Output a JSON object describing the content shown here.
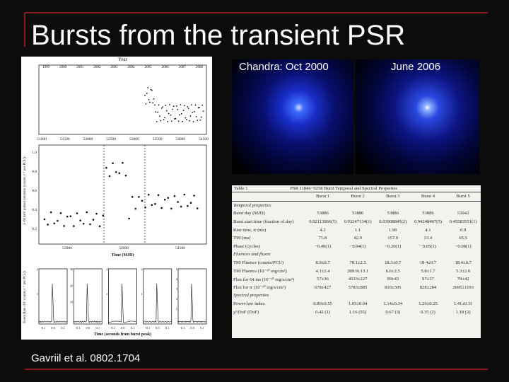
{
  "slide": {
    "title": "Bursts from the transient PSR",
    "citation": "Gavriil et al. 0802.1704",
    "image_labels": [
      "Chandra:  Oct 2000",
      "June 2006"
    ],
    "figure": {
      "top_axis_label": "Year",
      "years": [
        "1999",
        "2000",
        "2001",
        "2002",
        "2003",
        "2004",
        "2005",
        "2006",
        "2007",
        "2008"
      ],
      "top_xticks": [
        "51000",
        "51500",
        "52000",
        "52500",
        "53000",
        "53500",
        "54000",
        "54500"
      ],
      "middle_xticks": [
        "53900",
        "54000",
        "54100"
      ],
      "middle_yticks": [
        "0.2",
        "0.4",
        "0.6",
        "0.8",
        "1.0"
      ],
      "middle_xlabel": "Time (MJD)",
      "ylabel_top": "2–60 keV pulsed intensity (counts s⁻¹ per PCU)",
      "ylabel_bottom": "Event Rate (10³ counts s⁻¹ per PCU)",
      "mini_xticks": [
        "-0.1",
        "0.0",
        "0.1"
      ],
      "mini_yticks": [
        [
          "1",
          "2"
        ],
        [
          "10",
          "20",
          "30"
        ],
        [
          "1",
          "2"
        ],
        [
          "1",
          "2"
        ],
        [
          "1",
          "2",
          "3",
          "4",
          "5"
        ]
      ],
      "bottom_xlabel": "Time (seconds from burst peak)"
    },
    "table": {
      "caption": "Table 1",
      "title": "PSR J1846−0258 Burst Temporal and Spectral Properties",
      "header": [
        "",
        "Burst 1",
        "Burst 2",
        "Burst 3",
        "Burst 4",
        "Burst 5"
      ],
      "rows": [
        [
          "Temporal properties",
          "",
          "",
          "",
          "",
          ""
        ],
        [
          "Burst day (MJD)",
          "53886",
          "53886",
          "53886",
          "53886",
          "53943"
        ],
        [
          "Burst start time (fraction of day)",
          "0.92113966(5)",
          "0.93247134(1)",
          "0.93908845(2)",
          "0.94248467(5)",
          "0.45583551(1)"
        ],
        [
          "Rise time, tr (ms)",
          "4.2",
          "1.1",
          "1.90",
          "4.1",
          "0.9"
        ],
        [
          "T90 (ms)",
          "71.8",
          "42.9",
          "157.0",
          "33.4",
          "65.5"
        ],
        [
          "Phase (cycles)",
          "−0.49(1)",
          "−0.04(1)",
          "−0.20(1)",
          "−0.05(1)",
          "−0.08(1)"
        ],
        [
          "Fluences and fluxes",
          "",
          "",
          "",
          "",
          ""
        ],
        [
          "T90 Fluence (counts/PCU)",
          "8.9±0.7",
          "78.1±2.5",
          "18.3±0.7",
          "18.4±0.7",
          "18.4±0.7"
        ],
        [
          "T90 Fluence (10⁻¹⁰ erg/cm²)",
          "4.1±2.4",
          "289.9±13.1",
          "6.6±2.5",
          "5.8±1.7",
          "5.3±2.0"
        ],
        [
          "Flux for 64 ms (10⁻¹⁰ erg/s/cm²)",
          "57±36",
          "4533±227",
          "99±43",
          "97±37",
          "79±42"
        ],
        [
          "Flux for tr (10⁻¹⁰ erg/s/cm²)",
          "678±427",
          "5783±885",
          "810±305",
          "828±284",
          "2695±1193"
        ],
        [
          "Spectral properties",
          "",
          "",
          "",
          "",
          ""
        ],
        [
          "Power-law index",
          "0.89±0.55",
          "1.05±0.04",
          "1.14±0.34",
          "1.26±0.25",
          "1.41±0.31"
        ],
        [
          "χ²/DoF (DoF)",
          "0.42 (1)",
          "1.16 (55)",
          "0.67 (3)",
          "0.35 (2)",
          "1.18 (2)"
        ]
      ]
    }
  }
}
